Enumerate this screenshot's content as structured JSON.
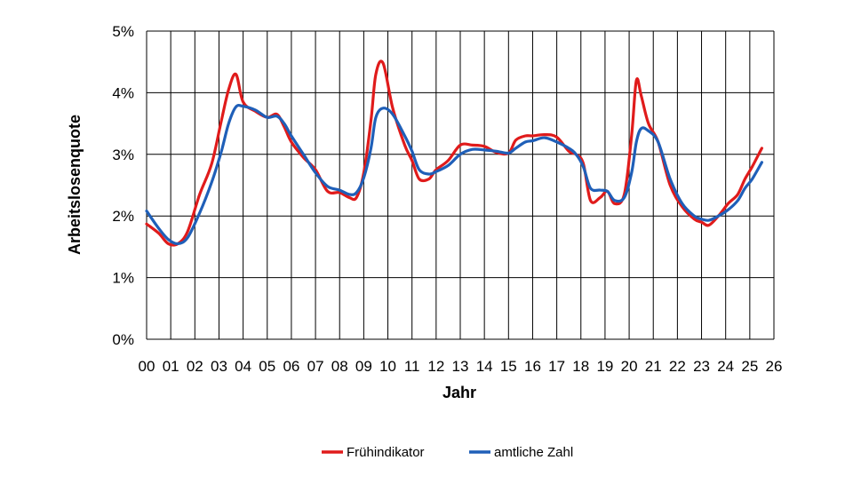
{
  "chart_data": {
    "type": "line",
    "xlabel": "Jahr",
    "ylabel": "Arbeitslosenquote",
    "x_tick_labels": [
      "00",
      "01",
      "02",
      "03",
      "04",
      "05",
      "06",
      "07",
      "08",
      "09",
      "10",
      "11",
      "12",
      "13",
      "14",
      "15",
      "16",
      "17",
      "18",
      "19",
      "20",
      "21",
      "22",
      "23",
      "24",
      "25",
      "26"
    ],
    "y_tick_labels": [
      "0%",
      "1%",
      "2%",
      "3%",
      "4%",
      "5%"
    ],
    "xlim": [
      0,
      26
    ],
    "ylim": [
      0,
      5
    ],
    "grid": true,
    "legend_position": "bottom",
    "series": [
      {
        "name": "Frühindikator",
        "color": "#e01b1b",
        "x": [
          0,
          0.5,
          0.9,
          1.3,
          1.7,
          2.2,
          2.7,
          3.1,
          3.4,
          3.7,
          4.0,
          4.5,
          5.0,
          5.4,
          5.7,
          6.0,
          6.5,
          7.0,
          7.5,
          8.0,
          8.4,
          8.7,
          9.0,
          9.3,
          9.5,
          9.8,
          10.2,
          10.7,
          11.0,
          11.3,
          11.7,
          12.0,
          12.5,
          13.0,
          13.5,
          14.0,
          14.5,
          15.0,
          15.3,
          15.7,
          16.0,
          16.5,
          17.0,
          17.5,
          17.8,
          18.1,
          18.4,
          18.8,
          19.1,
          19.4,
          19.8,
          20.1,
          20.3,
          20.5,
          20.8,
          21.2,
          21.7,
          22.2,
          22.7,
          23.0,
          23.3,
          23.7,
          24.1,
          24.5,
          24.8,
          25.1,
          25.5
        ],
        "values": [
          1.87,
          1.72,
          1.55,
          1.55,
          1.75,
          2.35,
          2.85,
          3.55,
          4.05,
          4.3,
          3.85,
          3.7,
          3.6,
          3.65,
          3.45,
          3.2,
          2.95,
          2.75,
          2.4,
          2.38,
          2.3,
          2.3,
          2.7,
          3.55,
          4.3,
          4.48,
          3.75,
          3.15,
          2.9,
          2.6,
          2.6,
          2.75,
          2.9,
          3.15,
          3.15,
          3.13,
          3.03,
          3.02,
          3.23,
          3.3,
          3.3,
          3.32,
          3.28,
          3.05,
          3.0,
          2.85,
          2.25,
          2.3,
          2.4,
          2.2,
          2.35,
          3.3,
          4.2,
          3.95,
          3.5,
          3.2,
          2.5,
          2.15,
          1.95,
          1.9,
          1.85,
          2.0,
          2.2,
          2.35,
          2.6,
          2.8,
          3.1
        ]
      },
      {
        "name": "amtliche Zahl",
        "color": "#1f5fb8",
        "x": [
          0,
          0.5,
          0.9,
          1.3,
          1.7,
          2.2,
          2.7,
          3.1,
          3.4,
          3.7,
          4.0,
          4.5,
          5.0,
          5.4,
          5.7,
          6.0,
          6.5,
          7.0,
          7.5,
          8.0,
          8.4,
          8.7,
          9.0,
          9.3,
          9.5,
          9.8,
          10.2,
          10.7,
          11.0,
          11.3,
          11.7,
          12.0,
          12.5,
          13.0,
          13.5,
          14.0,
          14.5,
          15.0,
          15.3,
          15.7,
          16.0,
          16.5,
          17.0,
          17.5,
          17.8,
          18.1,
          18.4,
          18.8,
          19.1,
          19.4,
          19.8,
          20.1,
          20.3,
          20.5,
          20.8,
          21.2,
          21.7,
          22.2,
          22.7,
          23.0,
          23.3,
          23.7,
          24.1,
          24.5,
          24.8,
          25.1,
          25.5
        ],
        "values": [
          2.08,
          1.8,
          1.62,
          1.55,
          1.65,
          2.05,
          2.55,
          3.05,
          3.5,
          3.77,
          3.78,
          3.72,
          3.6,
          3.62,
          3.5,
          3.3,
          3.0,
          2.7,
          2.48,
          2.42,
          2.35,
          2.38,
          2.62,
          3.1,
          3.6,
          3.75,
          3.65,
          3.3,
          3.05,
          2.75,
          2.68,
          2.72,
          2.82,
          3.0,
          3.08,
          3.07,
          3.05,
          3.02,
          3.1,
          3.2,
          3.22,
          3.27,
          3.2,
          3.1,
          3.0,
          2.8,
          2.45,
          2.42,
          2.4,
          2.25,
          2.3,
          2.7,
          3.2,
          3.42,
          3.38,
          3.2,
          2.6,
          2.2,
          2.0,
          1.95,
          1.93,
          2.0,
          2.1,
          2.25,
          2.45,
          2.6,
          2.87
        ]
      }
    ]
  }
}
